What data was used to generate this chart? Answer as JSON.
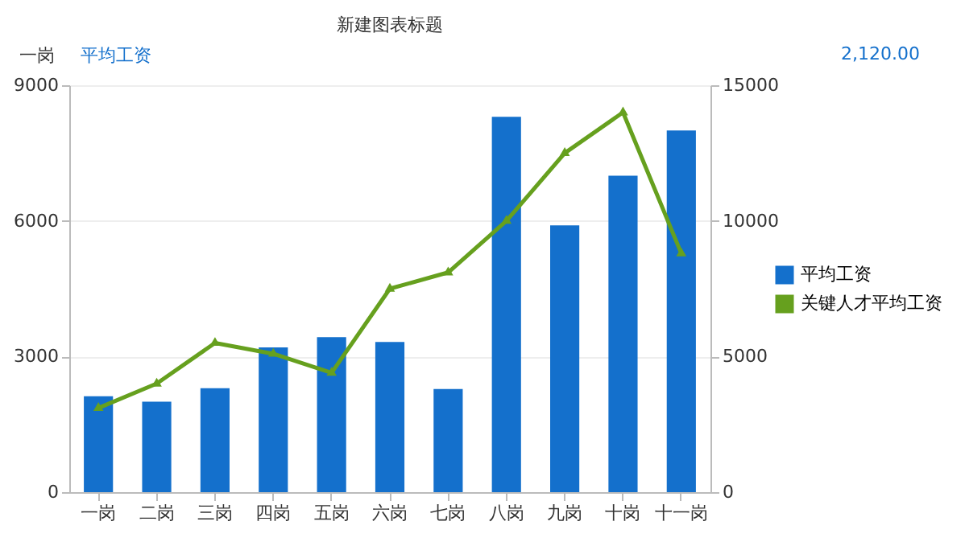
{
  "chart_data": {
    "type": "bar",
    "title": "新建图表标题",
    "categories": [
      "一岗",
      "二岗",
      "三岗",
      "四岗",
      "五岗",
      "六岗",
      "七岗",
      "八岗",
      "九岗",
      "十岗",
      "十一岗"
    ],
    "series": [
      {
        "name": "平均工资",
        "color": "#1470cc",
        "values": [
          2120,
          2000,
          2300,
          3200,
          3430,
          3320,
          2280,
          8300,
          5900,
          7000,
          8000
        ]
      },
      {
        "name": "关键人才平均工资",
        "type": "line",
        "axis": "y2",
        "color": "#66a01e",
        "marker": "triangle",
        "values": [
          3100,
          4000,
          5500,
          5100,
          4400,
          7500,
          8100,
          10000,
          12500,
          14000,
          8800
        ]
      }
    ],
    "ylim": [
      0,
      9000
    ],
    "yticks": [
      0,
      3000,
      6000,
      9000
    ],
    "y2lim": [
      0,
      15000
    ],
    "y2ticks": [
      0,
      5000,
      10000,
      15000
    ],
    "grid": "y",
    "legend": "right",
    "annotations": [
      "一岗",
      "平均工资",
      "2,120.00"
    ]
  }
}
